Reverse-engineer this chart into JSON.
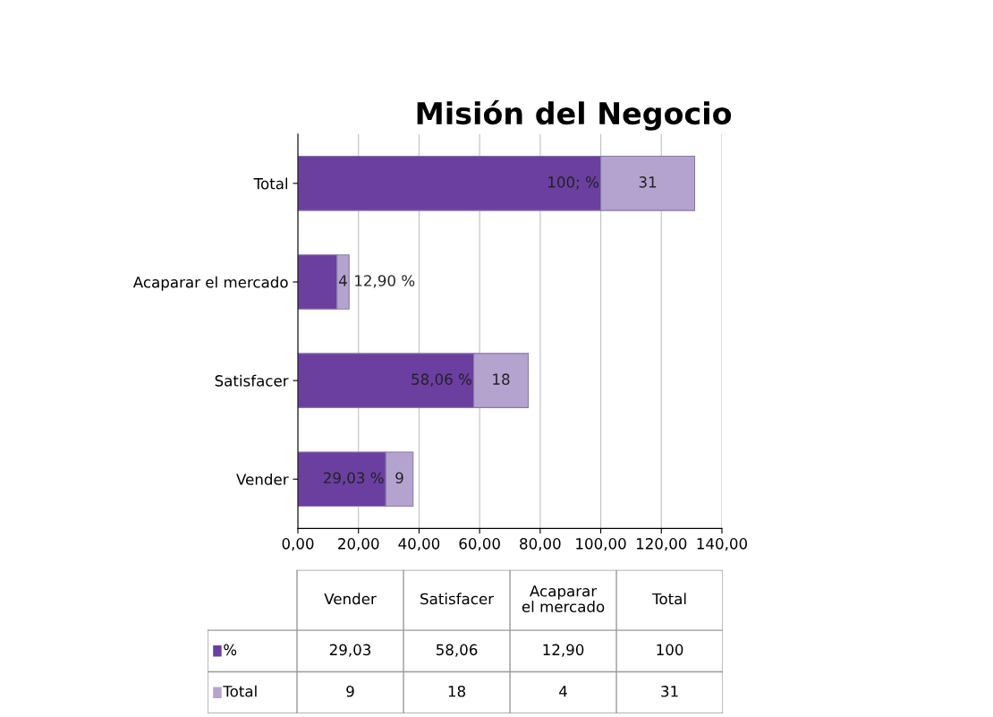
{
  "chart_data": {
    "type": "bar",
    "orientation": "horizontal",
    "stacked": true,
    "title": "Misión del Negocio",
    "categories": [
      "Total",
      "Acaparar el mercado",
      "Satisfacer",
      "Vender"
    ],
    "series": [
      {
        "name": "%",
        "color": "#6b3fa0",
        "values": [
          100,
          12.9,
          58.06,
          29.03
        ],
        "value_labels": [
          "100; %",
          "12,90 %",
          "58,06 %",
          "29,03 %"
        ]
      },
      {
        "name": "Total",
        "color": "#b4a3cf",
        "values": [
          31,
          4,
          18,
          9
        ],
        "value_labels": [
          "31",
          "4",
          "18",
          "9"
        ]
      }
    ],
    "xlim": [
      0,
      140
    ],
    "xticks": [
      {
        "value": 0,
        "label": "0,00"
      },
      {
        "value": 20,
        "label": "20,00"
      },
      {
        "value": 40,
        "label": "40,00"
      },
      {
        "value": 60,
        "label": "60,00"
      },
      {
        "value": 80,
        "label": "80,00"
      },
      {
        "value": 100,
        "label": "100,00"
      },
      {
        "value": 120,
        "label": "120,00"
      },
      {
        "value": 140,
        "label": "140,00"
      }
    ],
    "annotations": [
      "29,03",
      "58,06",
      "12,90",
      "100",
      "9",
      "18",
      "4",
      "31"
    ],
    "grid": "x",
    "legend": "bottom",
    "data_labels": true
  }
}
